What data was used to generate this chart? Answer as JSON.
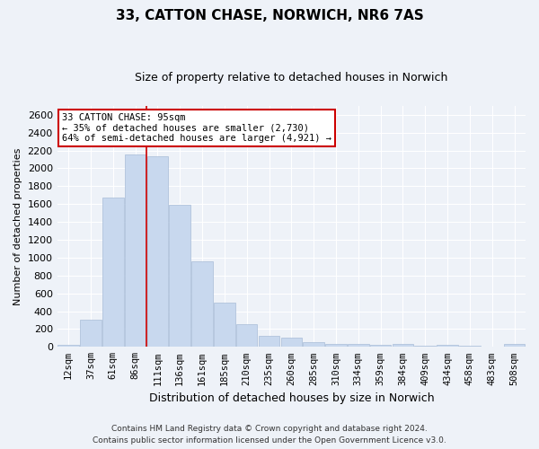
{
  "title": "33, CATTON CHASE, NORWICH, NR6 7AS",
  "subtitle": "Size of property relative to detached houses in Norwich",
  "xlabel": "Distribution of detached houses by size in Norwich",
  "ylabel": "Number of detached properties",
  "bar_color": "#c8d8ee",
  "bar_edgecolor": "#a8bcd8",
  "vline_color": "#cc0000",
  "vline_x_idx": 3.5,
  "annotation_text_line1": "33 CATTON CHASE: 95sqm",
  "annotation_text_line2": "← 35% of detached houses are smaller (2,730)",
  "annotation_text_line3": "64% of semi-detached houses are larger (4,921) →",
  "annotation_box_color": "white",
  "annotation_box_edgecolor": "#cc0000",
  "categories": [
    "12sqm",
    "37sqm",
    "61sqm",
    "86sqm",
    "111sqm",
    "136sqm",
    "161sqm",
    "185sqm",
    "210sqm",
    "235sqm",
    "260sqm",
    "285sqm",
    "310sqm",
    "334sqm",
    "359sqm",
    "384sqm",
    "409sqm",
    "434sqm",
    "458sqm",
    "483sqm",
    "508sqm"
  ],
  "values": [
    25,
    300,
    1670,
    2150,
    2130,
    1590,
    960,
    500,
    250,
    120,
    100,
    50,
    35,
    35,
    20,
    30,
    10,
    25,
    10,
    5,
    30
  ],
  "ylim": [
    0,
    2700
  ],
  "yticks": [
    0,
    200,
    400,
    600,
    800,
    1000,
    1200,
    1400,
    1600,
    1800,
    2000,
    2200,
    2400,
    2600
  ],
  "footer1": "Contains HM Land Registry data © Crown copyright and database right 2024.",
  "footer2": "Contains public sector information licensed under the Open Government Licence v3.0.",
  "background_color": "#eef2f8",
  "grid_color": "white",
  "title_fontsize": 11,
  "subtitle_fontsize": 9,
  "ylabel_fontsize": 8,
  "xlabel_fontsize": 9,
  "tick_fontsize": 8,
  "xtick_fontsize": 7.5
}
